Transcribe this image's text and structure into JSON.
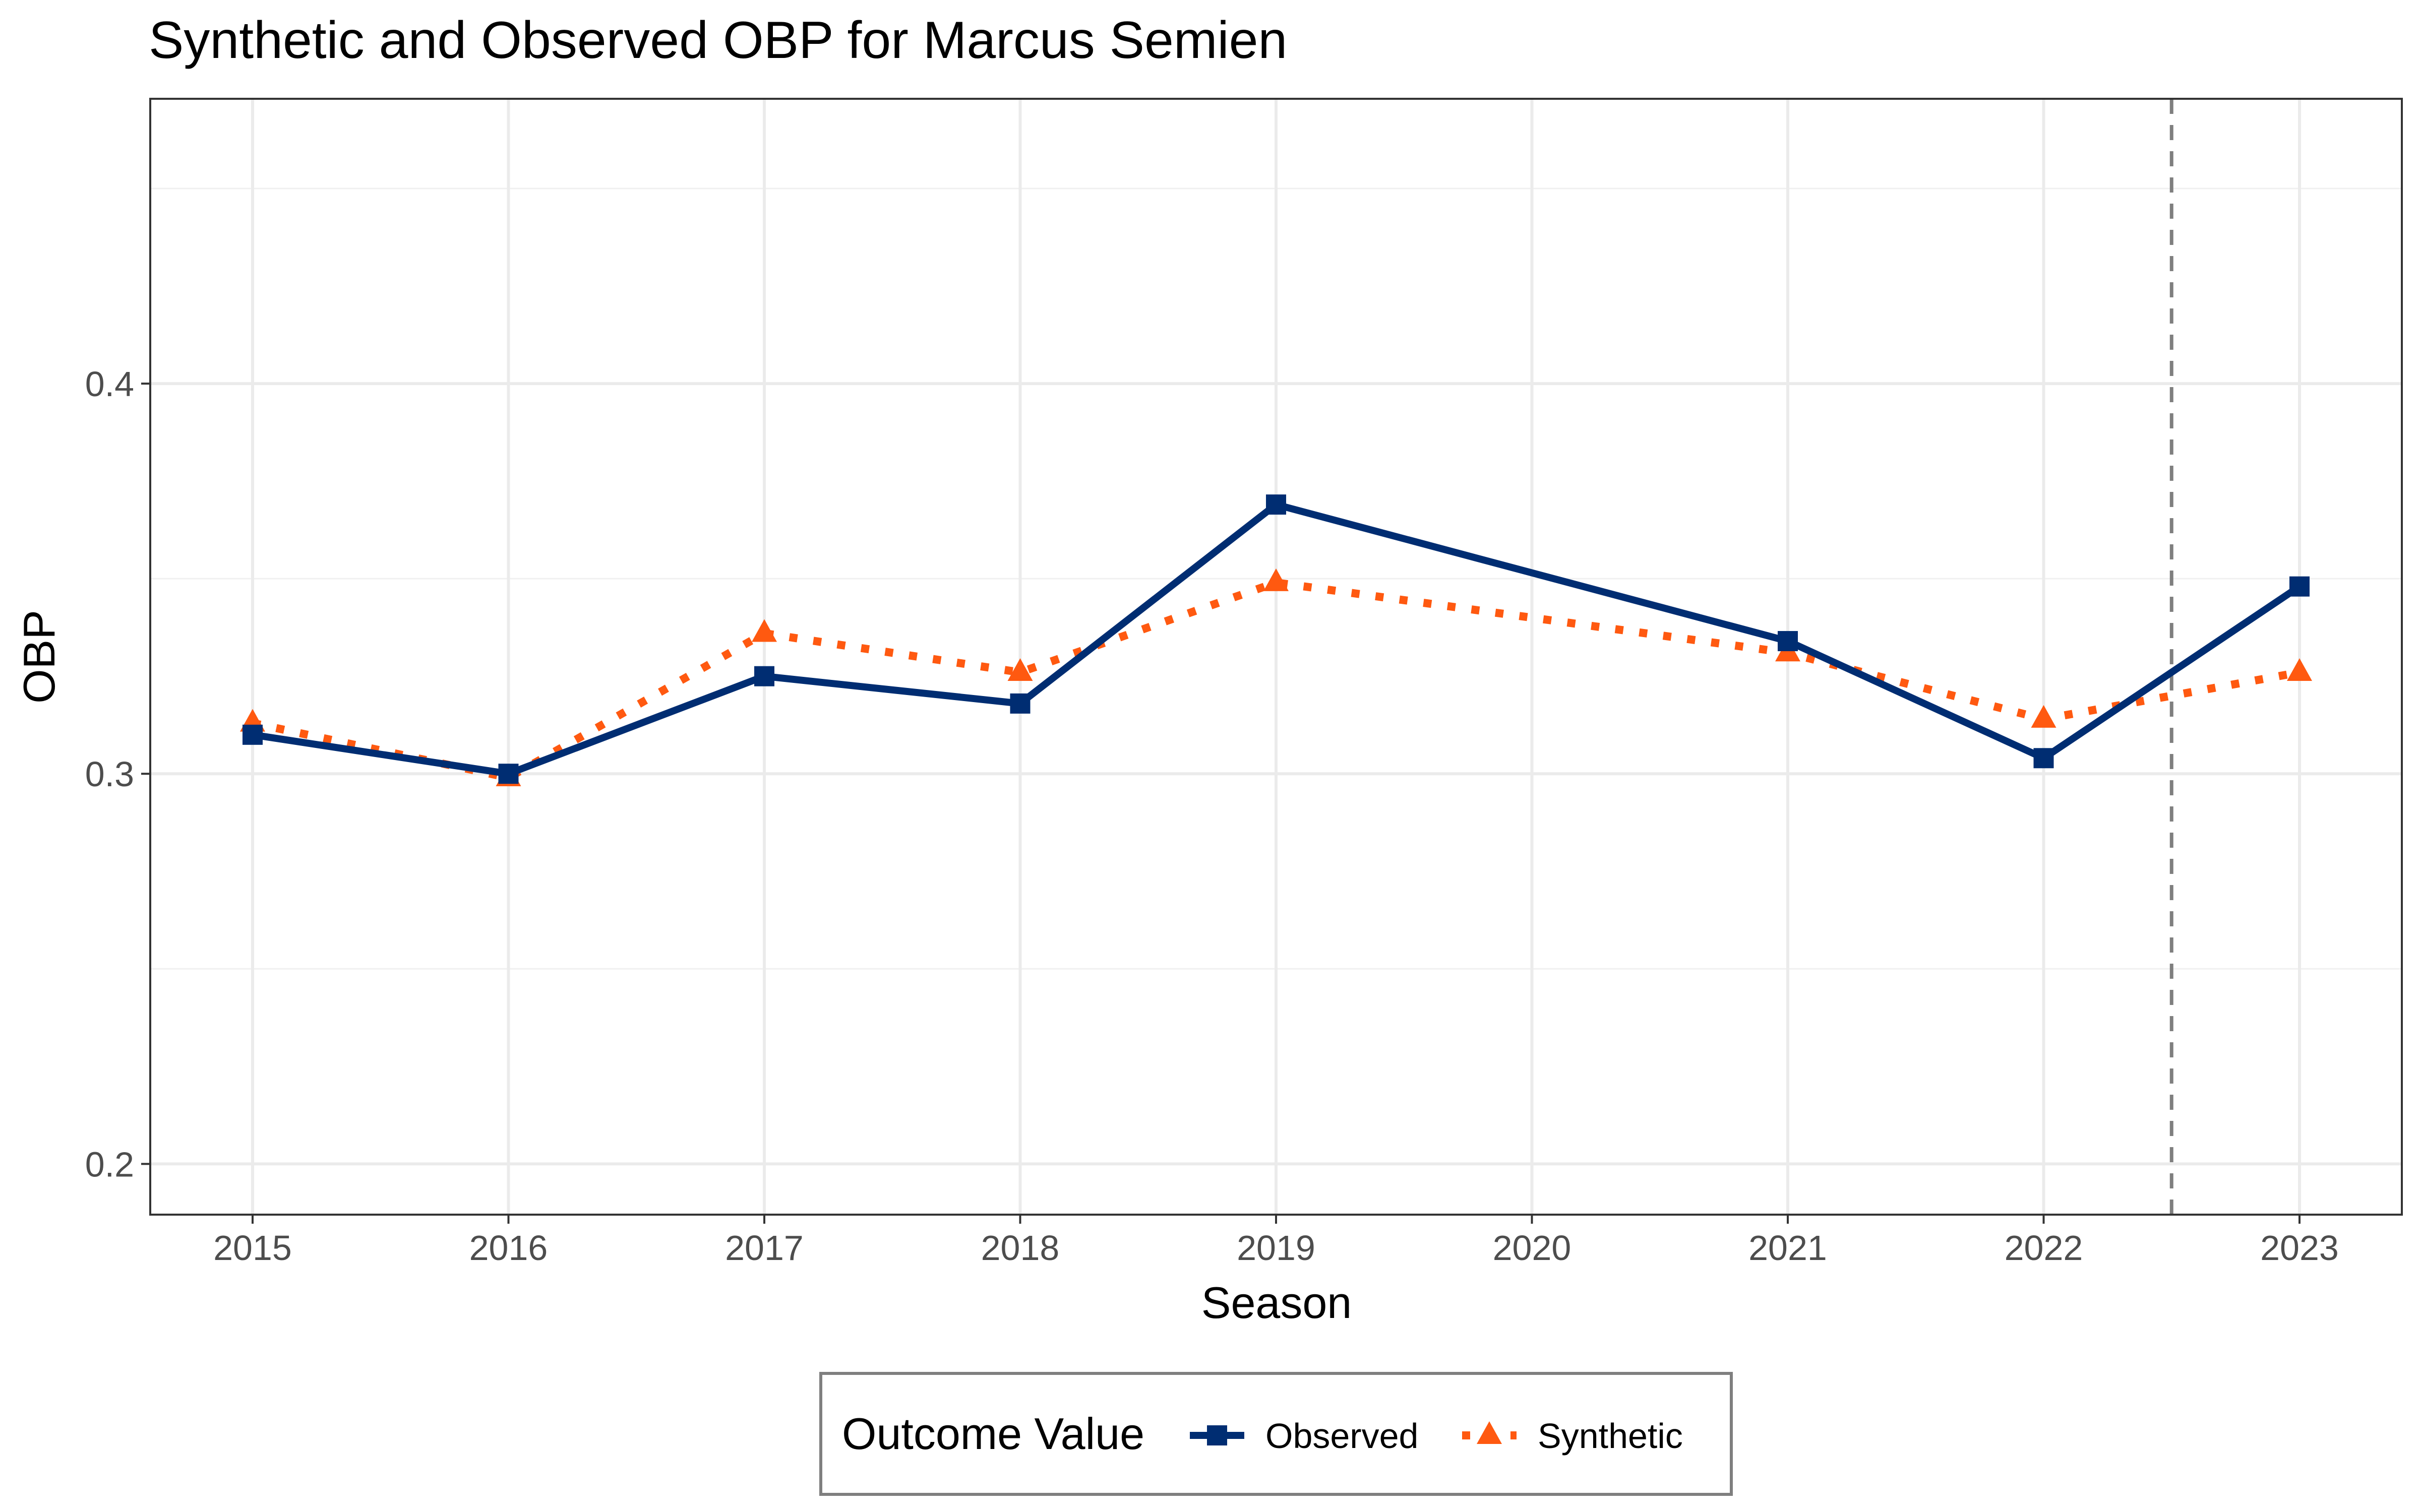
{
  "chart_data": {
    "type": "line",
    "title": "Synthetic and Observed OBP for Marcus Semien",
    "xlabel": "Season",
    "ylabel": "OBP",
    "x": [
      2015,
      2016,
      2017,
      2018,
      2019,
      2020,
      2021,
      2022,
      2023
    ],
    "x_ticks": [
      "2015",
      "2016",
      "2017",
      "2018",
      "2019",
      "2020",
      "2021",
      "2022",
      "2023"
    ],
    "y_ticks": [
      "0.2",
      "0.3",
      "0.4"
    ],
    "xlim": [
      2014.6,
      2023.4
    ],
    "ylim": [
      0.187,
      0.473
    ],
    "grid": true,
    "intervention_line": {
      "x": 2022.5,
      "style": "dashed",
      "color": "#7f7f7f"
    },
    "legend": {
      "title": "Outcome Value",
      "position": "bottom"
    },
    "series": [
      {
        "name": "Observed",
        "color": "#002D72",
        "line_style": "solid",
        "marker": "square",
        "points": [
          {
            "x": 2015,
            "y": 0.31
          },
          {
            "x": 2016,
            "y": 0.3
          },
          {
            "x": 2017,
            "y": 0.325
          },
          {
            "x": 2018,
            "y": 0.318
          },
          {
            "x": 2019,
            "y": 0.369
          },
          {
            "x": 2021,
            "y": 0.334
          },
          {
            "x": 2022,
            "y": 0.304
          },
          {
            "x": 2023,
            "y": 0.348
          }
        ]
      },
      {
        "name": "Synthetic",
        "color": "#FF5910",
        "line_style": "dotted",
        "marker": "triangle",
        "points": [
          {
            "x": 2015,
            "y": 0.313
          },
          {
            "x": 2016,
            "y": 0.299
          },
          {
            "x": 2017,
            "y": 0.336
          },
          {
            "x": 2018,
            "y": 0.326
          },
          {
            "x": 2019,
            "y": 0.349
          },
          {
            "x": 2021,
            "y": 0.331
          },
          {
            "x": 2022,
            "y": 0.314
          },
          {
            "x": 2023,
            "y": 0.326
          }
        ]
      }
    ]
  }
}
